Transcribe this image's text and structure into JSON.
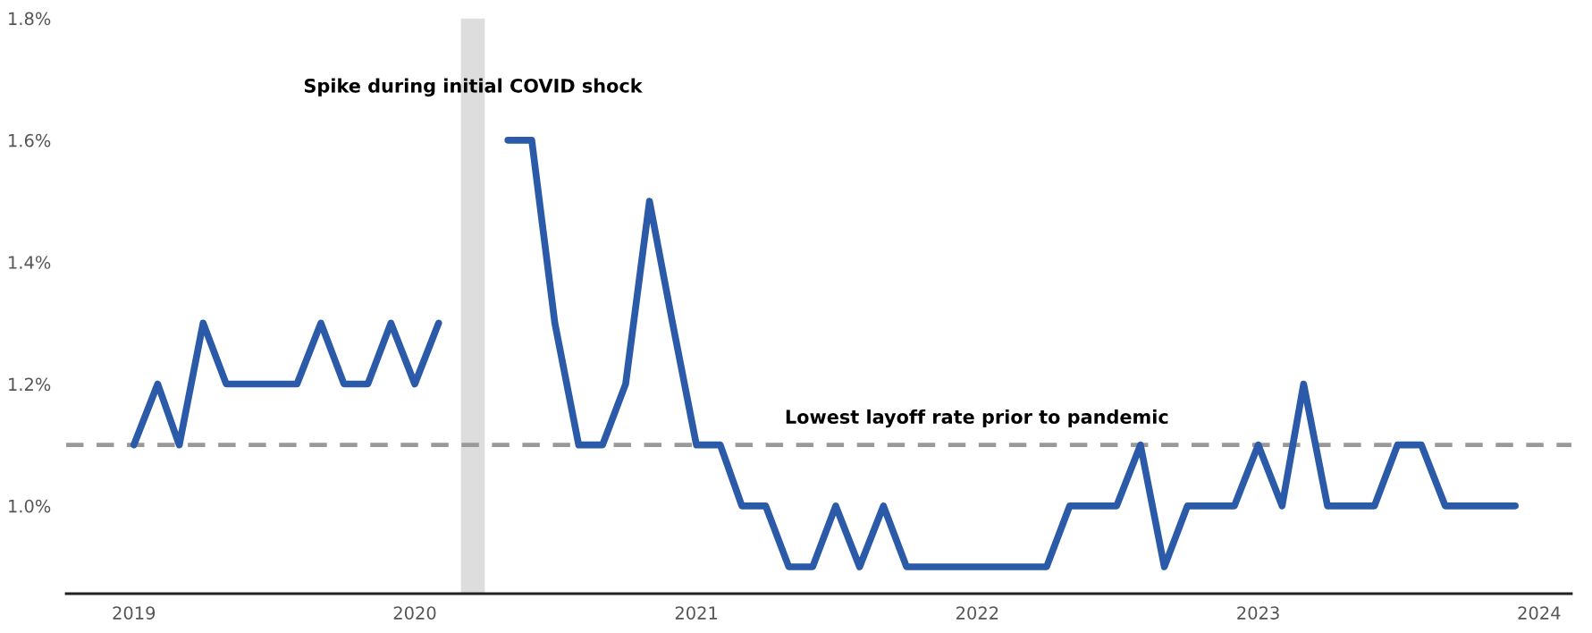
{
  "chart_data": {
    "type": "line",
    "x": [
      "2019-01",
      "2019-02",
      "2019-03",
      "2019-04",
      "2019-05",
      "2019-06",
      "2019-07",
      "2019-08",
      "2019-09",
      "2019-10",
      "2019-11",
      "2019-12",
      "2020-01",
      "2020-02",
      "2020-03",
      "2020-04",
      "2020-05",
      "2020-06",
      "2020-07",
      "2020-08",
      "2020-09",
      "2020-10",
      "2020-11",
      "2020-12",
      "2021-01",
      "2021-02",
      "2021-03",
      "2021-04",
      "2021-05",
      "2021-06",
      "2021-07",
      "2021-08",
      "2021-09",
      "2021-10",
      "2021-11",
      "2021-12",
      "2022-01",
      "2022-02",
      "2022-03",
      "2022-04",
      "2022-05",
      "2022-06",
      "2022-07",
      "2022-08",
      "2022-09",
      "2022-10",
      "2022-11",
      "2022-12",
      "2023-01",
      "2023-02",
      "2023-03",
      "2023-04",
      "2023-05",
      "2023-06",
      "2023-07",
      "2023-08",
      "2023-09",
      "2023-10",
      "2023-11",
      "2023-12"
    ],
    "series": [
      {
        "color": "#2a5aa8",
        "values": [
          1.1,
          1.2,
          1.1,
          1.3,
          1.2,
          1.2,
          1.2,
          1.2,
          1.3,
          1.2,
          1.2,
          1.3,
          1.2,
          1.3,
          null,
          null,
          1.6,
          1.6,
          1.3,
          1.1,
          1.1,
          1.2,
          1.5,
          1.3,
          1.1,
          1.1,
          1.0,
          1.0,
          0.9,
          0.9,
          1.0,
          0.9,
          1.0,
          0.9,
          0.9,
          0.9,
          0.9,
          0.9,
          0.9,
          0.9,
          1.0,
          1.0,
          1.0,
          1.1,
          0.9,
          1.0,
          1.0,
          1.0,
          1.1,
          1.0,
          1.2,
          1.0,
          1.0,
          1.0,
          1.1,
          1.1,
          1.0,
          1.0,
          1.0,
          1.0
        ]
      }
    ],
    "xlim": [
      "2018-10-05",
      "2024-02-12"
    ],
    "xticks": [
      "2019",
      "2020",
      "2021",
      "2022",
      "2023",
      "2024"
    ],
    "ylim": [
      0.856,
      1.8
    ],
    "yticks": [
      {
        "value": 1.0,
        "label": "1.0%"
      },
      {
        "value": 1.2,
        "label": "1.2%"
      },
      {
        "value": 1.4,
        "label": "1.4%"
      },
      {
        "value": 1.6,
        "label": "1.6%"
      },
      {
        "value": 1.8,
        "label": "1.8%"
      }
    ],
    "ref_lines": [
      {
        "axis": "y",
        "value": 1.1,
        "label": "Lowest layoff rate prior to pandemic",
        "color": "#999999",
        "line_style": "dashed"
      }
    ],
    "bands": [
      {
        "axis": "x",
        "from": "2020-03",
        "to": "2020-04",
        "label": "Spike during initial COVID shock",
        "color": "#dddddd"
      }
    ],
    "grid": false,
    "legend": false,
    "marker": "none",
    "line_style": "solid"
  }
}
